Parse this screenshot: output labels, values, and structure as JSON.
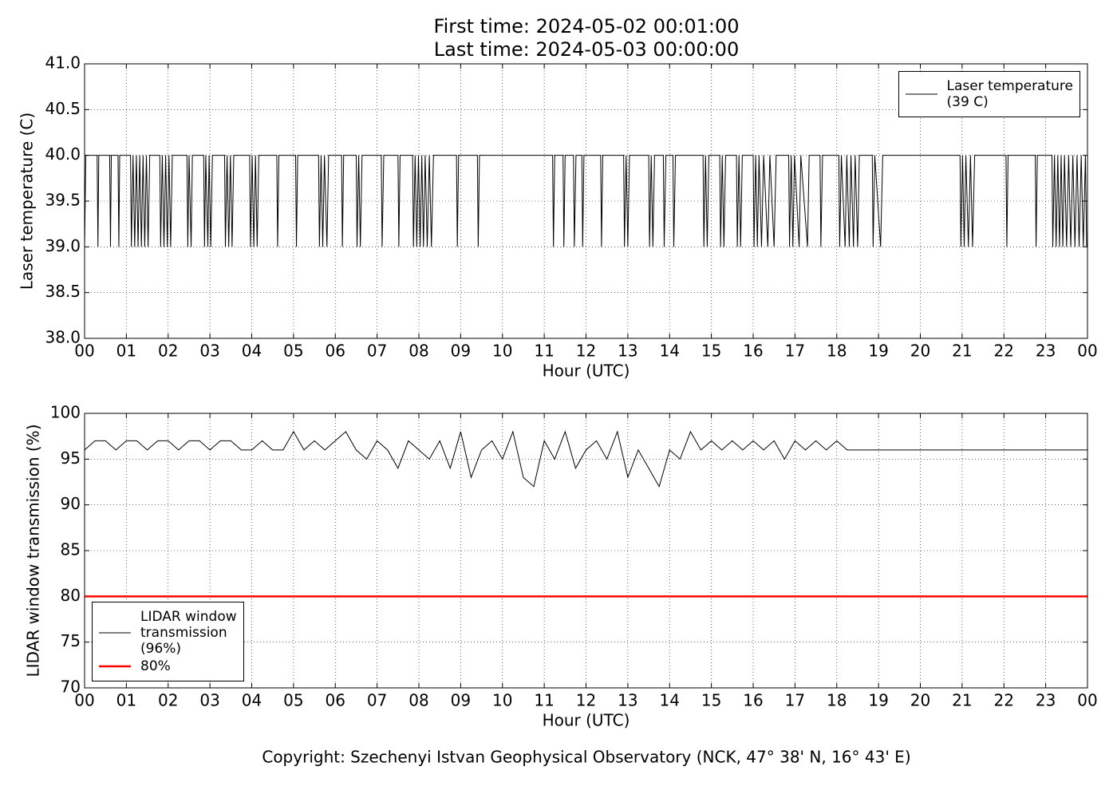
{
  "chart_data": [
    {
      "type": "line",
      "title": [
        "First time: 2024-05-02 00:01:00",
        "Last time: 2024-05-03 00:00:00"
      ],
      "x_label": "Hour (UTC)",
      "y_label": "Laser temperature (C)",
      "xlim": [
        0,
        24
      ],
      "xticks": [
        {
          "value": 0,
          "label": "00"
        },
        {
          "value": 1,
          "label": "01"
        },
        {
          "value": 2,
          "label": "02"
        },
        {
          "value": 3,
          "label": "03"
        },
        {
          "value": 4,
          "label": "04"
        },
        {
          "value": 5,
          "label": "05"
        },
        {
          "value": 6,
          "label": "06"
        },
        {
          "value": 7,
          "label": "07"
        },
        {
          "value": 8,
          "label": "08"
        },
        {
          "value": 9,
          "label": "09"
        },
        10,
        11,
        12,
        13,
        14,
        15,
        16,
        17,
        18,
        19,
        20,
        21,
        22,
        23,
        {
          "value": 24,
          "label": "00"
        }
      ],
      "ylim": [
        38,
        41
      ],
      "yticks": [
        {
          "value": 38,
          "label": "38.0"
        },
        38.5,
        {
          "value": 39,
          "label": "39.0"
        },
        39.5,
        {
          "value": 40,
          "label": "40.0"
        },
        40.5,
        {
          "value": 41,
          "label": "41.0"
        }
      ],
      "grid": true,
      "legend": "upper right",
      "series": [
        {
          "name": "Laser temperature\n(39 C)",
          "color": "#000000",
          "x": [
            0,
            0.03,
            0.3,
            0.32,
            0.34,
            0.6,
            0.62,
            0.64,
            0.8,
            0.82,
            0.84,
            1.1,
            1.12,
            1.16,
            1.2,
            1.24,
            1.28,
            1.32,
            1.36,
            1.4,
            1.44,
            1.48,
            1.52,
            1.56,
            1.8,
            1.82,
            1.86,
            1.9,
            1.94,
            1.98,
            2.02,
            2.06,
            2.1,
            2.45,
            2.47,
            2.5,
            2.55,
            2.58,
            2.85,
            2.87,
            2.9,
            2.95,
            2.98,
            3.02,
            3.06,
            3.35,
            3.37,
            3.41,
            3.45,
            3.49,
            3.53,
            3.57,
            3.95,
            3.97,
            4.01,
            4.05,
            4.09,
            4.13,
            4.17,
            4.6,
            4.62,
            4.65,
            5.05,
            5.07,
            5.1,
            5.6,
            5.62,
            5.66,
            5.7,
            5.74,
            5.8,
            5.84,
            6.15,
            6.17,
            6.2,
            6.5,
            6.52,
            6.56,
            6.6,
            6.64,
            7.1,
            7.12,
            7.16,
            7.5,
            7.52,
            7.55,
            7.85,
            7.87,
            7.91,
            7.95,
            7.99,
            8.03,
            8.07,
            8.11,
            8.15,
            8.2,
            8.25,
            8.3,
            8.35,
            8.9,
            8.92,
            8.95,
            9.4,
            9.42,
            9.45,
            11.2,
            11.22,
            11.25,
            11.45,
            11.47,
            11.5,
            11.7,
            11.72,
            11.76,
            11.9,
            11.92,
            11.95,
            12.35,
            12.37,
            12.4,
            12.9,
            12.92,
            12.96,
            13,
            13.04,
            13.5,
            13.52,
            13.56,
            13.6,
            13.64,
            13.85,
            13.87,
            13.91,
            14.08,
            14.1,
            14.14,
            14.8,
            14.82,
            14.86,
            14.9,
            14.94,
            15.2,
            15.22,
            15.26,
            15.3,
            15.34,
            15.6,
            15.62,
            15.66,
            15.7,
            15.74,
            16,
            16.02,
            16.06,
            16.1,
            16.14,
            16.2,
            16.25,
            16.35,
            16.4,
            16.5,
            16.55,
            16.85,
            16.87,
            16.91,
            16.95,
            16.99,
            17.1,
            17.14,
            17.3,
            17.34,
            17.6,
            17.62,
            17.66,
            18.05,
            18.07,
            18.11,
            18.2,
            18.24,
            18.3,
            18.34,
            18.4,
            18.44,
            18.5,
            18.54,
            18.85,
            18.87,
            18.91,
            19.05,
            19.1,
            20.95,
            20.97,
            21.01,
            21.05,
            21.09,
            21.15,
            21.2,
            21.25,
            21.3,
            22.05,
            22.07,
            22.1,
            22.75,
            22.77,
            22.8,
            23.15,
            23.17,
            23.21,
            23.25,
            23.29,
            23.33,
            23.37,
            23.41,
            23.45,
            23.5,
            23.55,
            23.6,
            23.65,
            23.7,
            23.75,
            23.8,
            23.85,
            23.9,
            23.95,
            23.98
          ],
          "values": [
            39,
            40,
            40,
            39,
            40,
            40,
            39,
            40,
            40,
            39,
            40,
            40,
            39,
            40,
            39,
            40,
            39,
            40,
            39,
            40,
            39,
            40,
            39,
            40,
            40,
            39,
            40,
            39,
            40,
            39,
            40,
            39,
            40,
            40,
            39,
            40,
            39,
            40,
            40,
            39,
            40,
            39,
            40,
            39,
            40,
            40,
            39,
            40,
            39,
            40,
            39,
            40,
            40,
            39,
            40,
            39,
            40,
            39,
            40,
            40,
            39,
            40,
            40,
            39,
            40,
            40,
            39,
            40,
            39,
            40,
            39,
            40,
            40,
            39,
            40,
            40,
            39,
            40,
            39,
            40,
            40,
            39,
            40,
            40,
            39,
            40,
            40,
            39,
            40,
            39,
            40,
            39,
            40,
            39,
            40,
            39,
            40,
            39,
            40,
            40,
            39,
            40,
            40,
            39,
            40,
            40,
            39,
            40,
            40,
            39,
            40,
            40,
            39,
            40,
            40,
            39,
            40,
            40,
            39,
            40,
            40,
            39,
            40,
            39,
            40,
            40,
            39,
            40,
            39,
            40,
            40,
            39,
            40,
            40,
            39,
            40,
            40,
            39,
            40,
            39,
            40,
            40,
            39,
            40,
            39,
            40,
            40,
            39,
            40,
            39,
            40,
            40,
            39,
            40,
            39,
            40,
            39,
            40,
            39,
            40,
            39,
            40,
            40,
            39,
            40,
            39,
            40,
            39,
            40,
            39,
            40,
            40,
            39,
            40,
            40,
            39,
            40,
            39,
            40,
            39,
            40,
            39,
            40,
            39,
            40,
            40,
            39,
            40,
            39,
            40,
            40,
            39,
            40,
            39,
            40,
            39,
            40,
            39,
            40,
            40,
            39,
            40,
            40,
            39,
            40,
            40,
            39,
            40,
            39,
            40,
            39,
            40,
            39,
            40,
            39,
            40,
            39,
            40,
            39,
            40,
            39,
            40,
            39,
            40,
            39
          ]
        }
      ]
    },
    {
      "type": "line",
      "x_label": "Hour (UTC)",
      "y_label": "LIDAR window transmission (%)",
      "xlim": [
        0,
        24
      ],
      "xticks": [
        {
          "value": 0,
          "label": "00"
        },
        {
          "value": 1,
          "label": "01"
        },
        {
          "value": 2,
          "label": "02"
        },
        {
          "value": 3,
          "label": "03"
        },
        {
          "value": 4,
          "label": "04"
        },
        {
          "value": 5,
          "label": "05"
        },
        {
          "value": 6,
          "label": "06"
        },
        {
          "value": 7,
          "label": "07"
        },
        {
          "value": 8,
          "label": "08"
        },
        {
          "value": 9,
          "label": "09"
        },
        10,
        11,
        12,
        13,
        14,
        15,
        16,
        17,
        18,
        19,
        20,
        21,
        22,
        23,
        {
          "value": 24,
          "label": "00"
        }
      ],
      "ylim": [
        70,
        100
      ],
      "yticks": [
        70,
        75,
        80,
        85,
        90,
        95,
        100
      ],
      "grid": true,
      "legend": "lower left",
      "series": [
        {
          "name": "LIDAR window\ntransmission\n(96%)",
          "color": "#000000",
          "width": 1,
          "x": [
            0,
            0.25,
            0.5,
            0.75,
            1,
            1.25,
            1.5,
            1.75,
            2,
            2.25,
            2.5,
            2.75,
            3,
            3.25,
            3.5,
            3.75,
            4,
            4.25,
            4.5,
            4.75,
            5,
            5.25,
            5.5,
            5.75,
            6,
            6.25,
            6.5,
            6.75,
            7,
            7.25,
            7.5,
            7.75,
            8,
            8.25,
            8.5,
            8.75,
            9,
            9.25,
            9.5,
            9.75,
            10,
            10.25,
            10.5,
            10.75,
            11,
            11.25,
            11.5,
            11.75,
            12,
            12.25,
            12.5,
            12.75,
            13,
            13.25,
            13.5,
            13.75,
            14,
            14.25,
            14.5,
            14.75,
            15,
            15.25,
            15.5,
            15.75,
            16,
            16.25,
            16.5,
            16.75,
            17,
            17.25,
            17.5,
            17.75,
            18,
            18.25,
            24
          ],
          "values": [
            96,
            97,
            97,
            96,
            97,
            97,
            96,
            97,
            97,
            96,
            97,
            97,
            96,
            97,
            97,
            96,
            96,
            97,
            96,
            96,
            98,
            96,
            97,
            96,
            97,
            98,
            96,
            95,
            97,
            96,
            94,
            97,
            96,
            95,
            97,
            94,
            98,
            93,
            96,
            97,
            95,
            98,
            93,
            92,
            97,
            95,
            98,
            94,
            96,
            97,
            95,
            98,
            93,
            96,
            94,
            92,
            96,
            95,
            98,
            96,
            97,
            96,
            97,
            96,
            97,
            96,
            97,
            95,
            97,
            96,
            97,
            96,
            97,
            96,
            96
          ]
        },
        {
          "name": "80%",
          "color": "#ff0000",
          "width": 2.5,
          "x": [
            0,
            24
          ],
          "values": [
            80,
            80
          ]
        }
      ]
    }
  ],
  "footer": "Copyright: Szechenyi Istvan Geophysical Observatory (NCK, 47° 38' N, 16° 43' E)"
}
